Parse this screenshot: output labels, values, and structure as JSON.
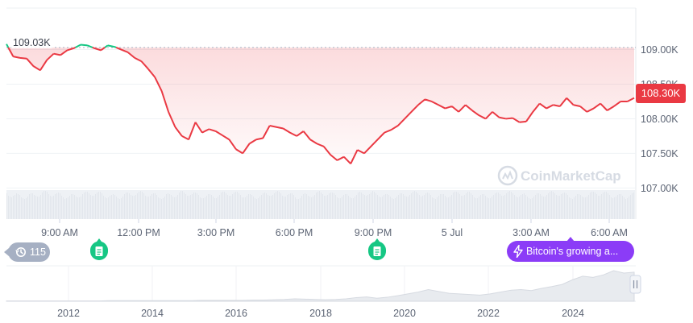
{
  "chart_data": {
    "type": "line",
    "reference_price_label": "109.03K",
    "reference_price": 109030,
    "current_price_label": "108.30K",
    "current_price": 108300,
    "y_ticks": [
      {
        "value": 109000,
        "label": "109.00K"
      },
      {
        "value": 108500,
        "label": "108.50K"
      },
      {
        "value": 108000,
        "label": "108.00K"
      },
      {
        "value": 107500,
        "label": "107.50K"
      },
      {
        "value": 107000,
        "label": "107.00K"
      }
    ],
    "ylim": [
      106550,
      109600
    ],
    "x_ticks": [
      "9:00 AM",
      "12:00 PM",
      "3:00 PM",
      "6:00 PM",
      "9:00 PM",
      "5 Jul",
      "3:00 AM",
      "6:00 AM"
    ],
    "series": [
      {
        "values": [
          109080,
          108900,
          108880,
          108870,
          108760,
          108700,
          108850,
          108940,
          108920,
          108990,
          109020,
          109070,
          109060,
          109020,
          108990,
          109060,
          109040,
          109000,
          108960,
          108880,
          108830,
          108720,
          108600,
          108400,
          108100,
          107880,
          107750,
          107700,
          107950,
          107800,
          107850,
          107820,
          107760,
          107700,
          107560,
          107500,
          107640,
          107700,
          107720,
          107900,
          107880,
          107860,
          107800,
          107750,
          107820,
          107700,
          107640,
          107600,
          107480,
          107400,
          107450,
          107350,
          107550,
          107500,
          107600,
          107700,
          107800,
          107840,
          107900,
          108000,
          108100,
          108200,
          108280,
          108250,
          108200,
          108150,
          108180,
          108100,
          108200,
          108120,
          108050,
          108000,
          108100,
          108020,
          108000,
          108010,
          107950,
          107960,
          108100,
          108220,
          108150,
          108200,
          108180,
          108300,
          108200,
          108180,
          108100,
          108150,
          108220,
          108120,
          108180,
          108250,
          108250,
          108300
        ]
      }
    ],
    "volume_note": "",
    "watermark": "CoinMarketCap",
    "range_x_ticks": [
      "2012",
      "2014",
      "2016",
      "2018",
      "2020",
      "2022",
      "2024"
    ],
    "range_history": [
      0.01,
      0.01,
      0.01,
      0.01,
      0.01,
      0.01,
      0.01,
      0.01,
      0.01,
      0.01,
      0.02,
      0.02,
      0.02,
      0.02,
      0.02,
      0.02,
      0.02,
      0.02,
      0.02,
      0.03,
      0.03,
      0.03,
      0.03,
      0.03,
      0.04,
      0.04,
      0.05,
      0.06,
      0.08,
      0.07,
      0.06,
      0.05,
      0.06,
      0.08,
      0.12,
      0.14,
      0.1,
      0.13,
      0.18,
      0.24,
      0.3,
      0.38,
      0.32,
      0.26,
      0.24,
      0.22,
      0.2,
      0.24,
      0.3,
      0.36,
      0.38,
      0.35,
      0.42,
      0.48,
      0.55,
      0.7,
      0.82,
      0.78,
      0.86,
      1.0,
      0.92,
      0.95
    ]
  },
  "badges": {
    "event_count": "115",
    "news_headline": "Bitcoin's growing a..."
  },
  "colors": {
    "up": "#16c784",
    "down": "#ea3943",
    "news": "#8b3cf7"
  },
  "icons": {
    "history": "history-icon",
    "doc": "document-icon",
    "bolt": "lightning-icon",
    "logo": "coinmarketcap-logo-icon",
    "pause": "pause-handle-icon"
  }
}
